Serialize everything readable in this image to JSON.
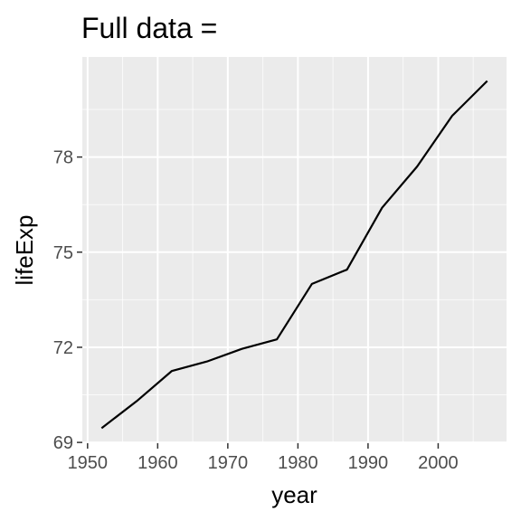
{
  "chart_data": {
    "type": "line",
    "title": "Full data =",
    "xlabel": "year",
    "ylabel": "lifeExp",
    "xlim": [
      1949.25,
      2009.75
    ],
    "ylim": [
      68.975,
      81.155
    ],
    "x_ticks": [
      {
        "value": 1950,
        "label": "1950"
      },
      {
        "value": 1960,
        "label": "1960"
      },
      {
        "value": 1970,
        "label": "1970"
      },
      {
        "value": 1980,
        "label": "1980"
      },
      {
        "value": 1990,
        "label": "1990"
      },
      {
        "value": 2000,
        "label": "2000"
      }
    ],
    "y_ticks": [
      {
        "value": 69,
        "label": "69"
      },
      {
        "value": 72,
        "label": "72"
      },
      {
        "value": 75,
        "label": "75"
      },
      {
        "value": 78,
        "label": "78"
      }
    ],
    "grid": true,
    "panel_color": "#ebebeb",
    "grid_color": "#ffffff",
    "line_color": "#000000",
    "series": [
      {
        "x": [
          1952,
          1957,
          1962,
          1967,
          1972,
          1977,
          1982,
          1987,
          1992,
          1997,
          2002,
          2007
        ],
        "values": [
          69.45,
          70.3,
          71.25,
          71.55,
          71.95,
          72.25,
          74.0,
          74.45,
          76.4,
          77.7,
          79.3,
          80.4
        ]
      }
    ]
  }
}
